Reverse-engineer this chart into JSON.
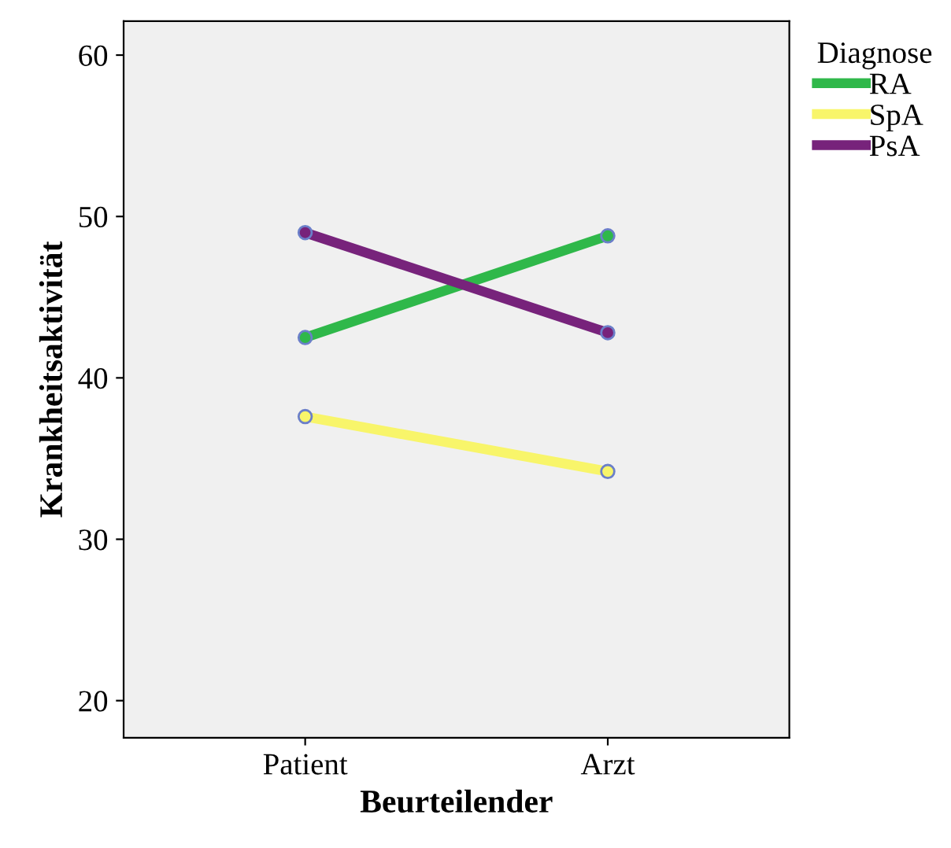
{
  "chart_data": {
    "type": "line",
    "xlabel": "Beurteilender",
    "ylabel": "Krankheitsaktivität",
    "legend_title": "Diagnose",
    "categories": [
      "Patient",
      "Arzt"
    ],
    "series": [
      {
        "name": "RA",
        "color": "#2fb84a",
        "values": [
          42.5,
          48.8
        ]
      },
      {
        "name": "SpA",
        "color": "#f8f56a",
        "values": [
          37.6,
          34.2
        ]
      },
      {
        "name": "PsA",
        "color": "#77237b",
        "values": [
          49.0,
          42.8
        ]
      }
    ],
    "ylim": [
      17.7,
      62.1
    ],
    "yticks": [
      20,
      30,
      40,
      50,
      60
    ],
    "marker": "circle",
    "legend": "top right",
    "grid": false
  }
}
